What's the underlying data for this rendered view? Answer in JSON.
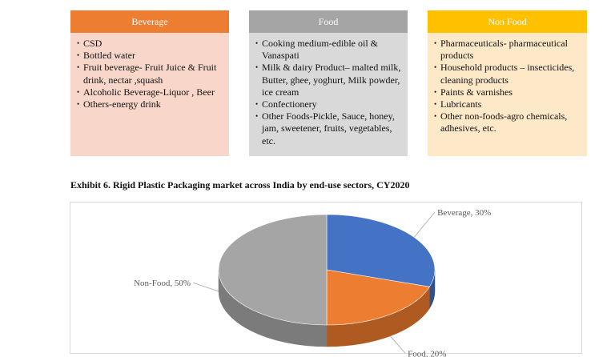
{
  "cards": [
    {
      "title": "Beverage",
      "color": "#ed7d31",
      "bg": "#f8d6c9",
      "items": [
        "CSD",
        "Bottled water",
        "Fruit beverage- Fruit Juice & Fruit drink, nectar ,squash",
        "Alcoholic Beverage-Liquor , Beer",
        "Others-energy drink"
      ]
    },
    {
      "title": "Food",
      "color": "#a5a5a5",
      "bg": "#d9d9d9",
      "items": [
        "Cooking medium-edible oil & Vanaspati",
        "Milk & dairy Product– malted milk, Butter, ghee, yoghurt, Milk powder, ice cream",
        "Confectionery",
        "Other Foods-Pickle, Sauce, honey, jam, sweetener, fruits, vegetables, etc."
      ]
    },
    {
      "title": "Non Food",
      "color": "#ffc000",
      "bg": "#fde8c8",
      "items": [
        "Pharmaceuticals- pharmaceutical products",
        "Household products – insecticides, cleaning products",
        "Paints & varnishes",
        "Lubricants",
        "Other non-foods-agro chemicals, adhesives, etc."
      ]
    }
  ],
  "exhibit_title": "Exhibit 6. Rigid Plastic Packaging market across India by end-use sectors, CY2020",
  "chart_data": {
    "type": "pie",
    "style": "3d",
    "title": "",
    "slices": [
      {
        "label": "Beverage, 30%",
        "name": "Beverage",
        "value": 30,
        "color": "#4472c4"
      },
      {
        "label": "Food, 20%",
        "name": "Food",
        "value": 20,
        "color": "#ed7d31"
      },
      {
        "label": "Non-Food, 50%",
        "name": "Non-Food",
        "value": 50,
        "color": "#a5a5a5"
      }
    ]
  }
}
